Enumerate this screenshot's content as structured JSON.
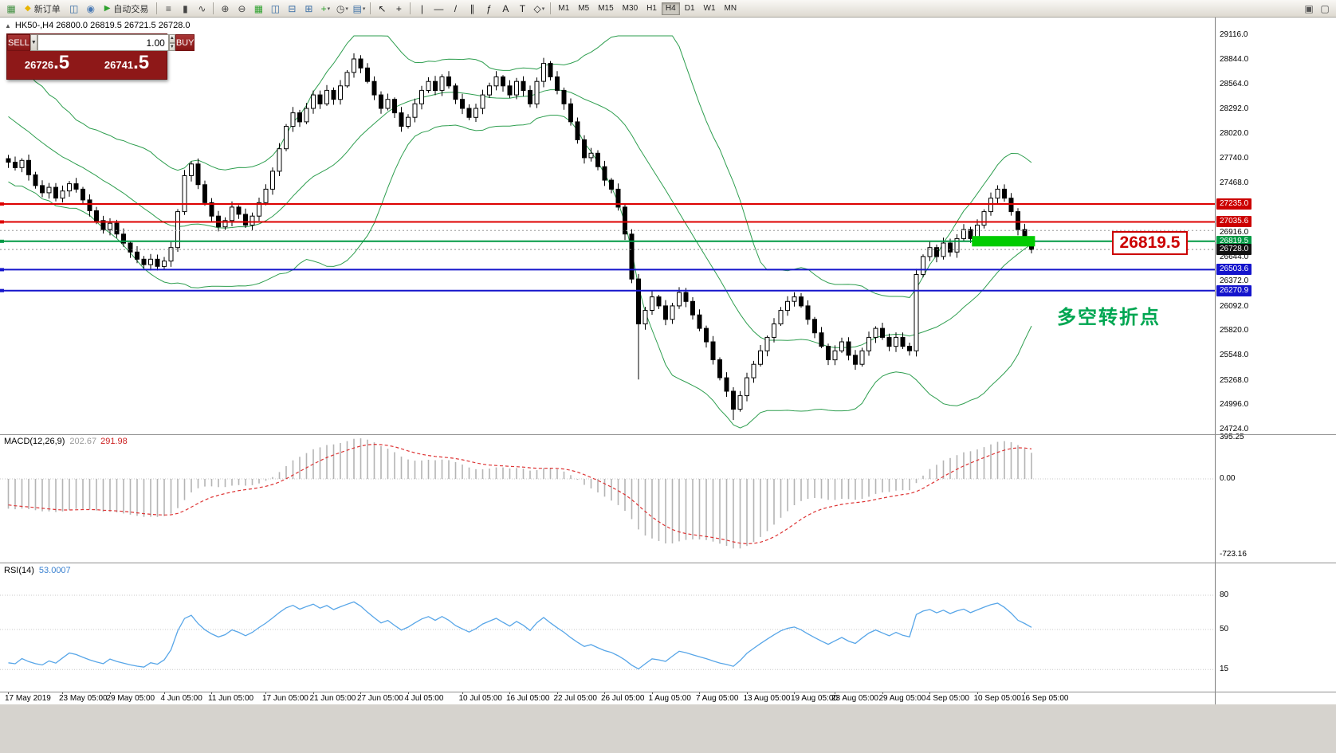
{
  "toolbar": {
    "left_items": [
      {
        "type": "icon",
        "name": "terminal-chart-icon",
        "glyph": "▦",
        "color": "#3f8f3f"
      },
      {
        "type": "button",
        "name": "new-order-button",
        "label": "新订单",
        "icon_glyph": "◆",
        "icon_color": "#e8b400"
      },
      {
        "type": "icon",
        "name": "charts-icon",
        "glyph": "◫",
        "color": "#3a6ea5"
      },
      {
        "type": "icon",
        "name": "mql-community-icon",
        "glyph": "◉",
        "color": "#4a7ab5"
      },
      {
        "type": "button",
        "name": "autotrading-button",
        "label": "自动交易",
        "icon_glyph": "▶",
        "icon_color": "#2da12d"
      },
      {
        "type": "sep"
      },
      {
        "type": "icon",
        "name": "bar-chart-mode-icon",
        "glyph": "≡",
        "color": "#444444"
      },
      {
        "type": "icon",
        "name": "candlestick-mode-icon",
        "glyph": "▮",
        "color": "#444444"
      },
      {
        "type": "icon",
        "name": "line-chart-mode-icon",
        "glyph": "∿",
        "color": "#444444"
      },
      {
        "type": "sep"
      },
      {
        "type": "icon",
        "name": "zoom-in-icon",
        "glyph": "⊕",
        "color": "#444444"
      },
      {
        "type": "icon",
        "name": "zoom-out-icon",
        "glyph": "⊖",
        "color": "#444444"
      },
      {
        "type": "icon",
        "name": "tile-windows-icon",
        "glyph": "▦",
        "color": "#2da12d"
      },
      {
        "type": "icon",
        "name": "cascade-windows-icon",
        "glyph": "◫",
        "color": "#3a6ea5"
      },
      {
        "type": "icon",
        "name": "tile-horizontal-icon",
        "glyph": "⊟",
        "color": "#3a6ea5"
      },
      {
        "type": "icon",
        "name": "tile-vertical-icon",
        "glyph": "⊞",
        "color": "#3a6ea5"
      },
      {
        "type": "icon-dd",
        "name": "indicators-icon",
        "glyph": "+",
        "color": "#2da12d"
      },
      {
        "type": "icon-dd",
        "name": "periods-clock-icon",
        "glyph": "◷",
        "color": "#444444"
      },
      {
        "type": "icon-dd",
        "name": "templates-icon",
        "glyph": "▤",
        "color": "#3a6ea5"
      },
      {
        "type": "sep"
      },
      {
        "type": "icon",
        "name": "cursor-arrow-icon",
        "glyph": "↖",
        "color": "#222222"
      },
      {
        "type": "icon",
        "name": "crosshair-icon",
        "glyph": "+",
        "color": "#222222"
      },
      {
        "type": "sep"
      },
      {
        "type": "icon",
        "name": "vertical-line-tool-icon",
        "glyph": "|",
        "color": "#222222"
      },
      {
        "type": "icon",
        "name": "horizontal-line-tool-icon",
        "glyph": "—",
        "color": "#222222"
      },
      {
        "type": "icon",
        "name": "trendline-tool-icon",
        "glyph": "/",
        "color": "#222222"
      },
      {
        "type": "icon",
        "name": "channel-tool-icon",
        "glyph": "∥",
        "color": "#222222"
      },
      {
        "type": "icon",
        "name": "fibonacci-tool-icon",
        "glyph": "ƒ",
        "color": "#222222"
      },
      {
        "type": "icon",
        "name": "text-tool-icon",
        "glyph": "A",
        "color": "#222222"
      },
      {
        "type": "icon",
        "name": "label-tool-icon",
        "glyph": "T",
        "color": "#222222"
      },
      {
        "type": "icon-dd",
        "name": "shapes-tool-icon",
        "glyph": "◇",
        "color": "#222222"
      },
      {
        "type": "sep"
      }
    ],
    "timeframes": [
      "M1",
      "M5",
      "M15",
      "M30",
      "H1",
      "H4",
      "D1",
      "W1",
      "MN"
    ],
    "active_timeframe": "H4",
    "right_items": [
      {
        "type": "icon",
        "name": "docking-panel-icon",
        "glyph": "▣",
        "color": "#555555"
      },
      {
        "type": "icon",
        "name": "chart-list-icon",
        "glyph": "▢",
        "color": "#555555"
      }
    ]
  },
  "chart": {
    "symbol_info": "HK50-,H4  26800.0 26819.5 26721.5 26728.0",
    "collapse_glyph": "▲",
    "trade": {
      "sell_label": "SELL",
      "buy_label": "BUY",
      "volume": "1.00",
      "sell_price_main": "26726",
      "sell_price_big": ".5",
      "buy_price_main": "26741",
      "buy_price_big": ".5"
    },
    "big_label": "26819.5",
    "big_label_color": "#cc0000",
    "annotation": "多空转折点",
    "annotation_color": "#00a651",
    "price_ticks": [
      "29116.0",
      "28844.0",
      "28564.0",
      "28292.0",
      "28020.0",
      "27740.0",
      "27468.0",
      "27196.0",
      "26916.0",
      "26644.0",
      "26372.0",
      "26092.0",
      "25820.0",
      "25548.0",
      "25268.0",
      "24996.0",
      "24724.0"
    ],
    "levels": [
      {
        "value": 27235.0,
        "color": "#dd0000",
        "width": 2,
        "style": "solid",
        "tag": "27235.0",
        "tag_bg": "#cc0000",
        "marker": true
      },
      {
        "value": 27035.6,
        "color": "#dd0000",
        "width": 2,
        "style": "solid",
        "tag": "27035.6",
        "tag_bg": "#cc0000",
        "marker": true
      },
      {
        "value": 26940.0,
        "color": "#9a9a9a",
        "width": 1,
        "style": "dotted",
        "tag": null,
        "tag_bg": null,
        "marker": false
      },
      {
        "value": 26819.5,
        "color": "#009944",
        "width": 2,
        "style": "solid",
        "tag": "26819.5",
        "tag_bg": "#009944",
        "marker": true
      },
      {
        "value": 26728.0,
        "color": "#8a8a8a",
        "width": 1,
        "style": "dotted",
        "tag": "26728.0",
        "tag_bg": "#111111",
        "marker": false
      },
      {
        "value": 26503.6,
        "color": "#1414cc",
        "width": 2,
        "style": "solid",
        "tag": "26503.6",
        "tag_bg": "#1414cc",
        "marker": true
      },
      {
        "value": 26270.9,
        "color": "#1414cc",
        "width": 2,
        "style": "solid",
        "tag": "26270.9",
        "tag_bg": "#1414cc",
        "marker": true
      }
    ],
    "highlight_rect": {
      "from_index": 142.5,
      "to_index": 151.8,
      "price_top": 26878,
      "price_bottom": 26762,
      "color": "#00cc00"
    },
    "time_labels": [
      {
        "i": 0,
        "t": "17 May 2019"
      },
      {
        "i": 8,
        "t": "23 May 05:00"
      },
      {
        "i": 15,
        "t": "29 May 05:00"
      },
      {
        "i": 23,
        "t": "4 Jun 05:00"
      },
      {
        "i": 30,
        "t": "11 Jun 05:00"
      },
      {
        "i": 38,
        "t": "17 Jun 05:00"
      },
      {
        "i": 45,
        "t": "21 Jun 05:00"
      },
      {
        "i": 52,
        "t": "27 Jun 05:00"
      },
      {
        "i": 59,
        "t": "4 Jul 05:00"
      },
      {
        "i": 67,
        "t": "10 Jul 05:00"
      },
      {
        "i": 74,
        "t": "16 Jul 05:00"
      },
      {
        "i": 81,
        "t": "22 Jul 05:00"
      },
      {
        "i": 88,
        "t": "26 Jul 05:00"
      },
      {
        "i": 95,
        "t": "1 Aug 05:00"
      },
      {
        "i": 102,
        "t": "7 Aug 05:00"
      },
      {
        "i": 109,
        "t": "13 Aug 05:00"
      },
      {
        "i": 116,
        "t": "19 Aug 05:00"
      },
      {
        "i": 122,
        "t": "23 Aug 05:00"
      },
      {
        "i": 129,
        "t": "29 Aug 05:00"
      },
      {
        "i": 136,
        "t": "4 Sep 05:00"
      },
      {
        "i": 143,
        "t": "10 Sep 05:00"
      },
      {
        "i": 150,
        "t": "16 Sep 05:00"
      }
    ]
  },
  "macd_label": {
    "name": "MACD(12,26,9)",
    "main": "202.67",
    "signal": "291.98"
  },
  "rsi_label": {
    "name": "RSI(14)",
    "value": "53.0007"
  },
  "scales": {
    "macd": [
      "395.25",
      "0.00",
      "-723.16"
    ],
    "rsi": [
      "80",
      "50",
      "15"
    ]
  },
  "chart_data": {
    "type": "candlestick",
    "symbol": "HK50",
    "period": "H4",
    "title": "HK50-,H4",
    "ohlc_current": {
      "open": 26800.0,
      "high": 26819.5,
      "low": 26721.5,
      "close": 26728.0
    },
    "y_range": [
      24724.0,
      29116.0
    ],
    "closes_pre": [
      28950,
      28800,
      28850,
      28650,
      28700,
      28500,
      28550,
      28350,
      28400,
      28200,
      28250,
      28050,
      28100,
      27950,
      28000,
      27850,
      27900,
      27780,
      27830,
      27740
    ],
    "closes": [
      27700,
      27640,
      27720,
      27560,
      27440,
      27360,
      27420,
      27300,
      27380,
      27460,
      27400,
      27280,
      27160,
      27050,
      26950,
      27020,
      26900,
      26800,
      26700,
      26620,
      26560,
      26620,
      26540,
      26600,
      26750,
      27150,
      27550,
      27680,
      27450,
      27250,
      27100,
      26980,
      27050,
      27200,
      27120,
      27000,
      27100,
      27250,
      27400,
      27600,
      27850,
      28100,
      28250,
      28150,
      28300,
      28450,
      28350,
      28500,
      28400,
      28550,
      28700,
      28850,
      28750,
      28600,
      28450,
      28300,
      28400,
      28250,
      28100,
      28200,
      28350,
      28500,
      28600,
      28500,
      28650,
      28550,
      28400,
      28300,
      28200,
      28300,
      28450,
      28550,
      28650,
      28550,
      28450,
      28600,
      28500,
      28350,
      28600,
      28800,
      28650,
      28500,
      28350,
      28150,
      27950,
      27750,
      27800,
      27650,
      27500,
      27400,
      27200,
      26900,
      26400,
      25900,
      26050,
      26200,
      26100,
      25950,
      26100,
      26250,
      26150,
      26000,
      25850,
      25700,
      25500,
      25300,
      25150,
      24950,
      25100,
      25300,
      25450,
      25600,
      25750,
      25900,
      26050,
      26150,
      26200,
      26100,
      25950,
      25800,
      25650,
      25500,
      25600,
      25700,
      25550,
      25450,
      25600,
      25750,
      25850,
      25750,
      25650,
      25750,
      25650,
      25600,
      26450,
      26650,
      26750,
      26650,
      26800,
      26700,
      26850,
      26950,
      26850,
      27000,
      27150,
      27300,
      27400,
      27300,
      27150,
      26950,
      26850,
      26728
    ],
    "wick_low_overrides": {
      "93": 25280,
      "107": 24830
    },
    "overlays": [
      {
        "type": "bollinger",
        "period": 20,
        "deviation": 2,
        "color": "#2e9e4f"
      }
    ],
    "indicators": [
      {
        "type": "macd",
        "fast": 12,
        "slow": 26,
        "signal": 9,
        "main_value": 202.67,
        "signal_value": 291.98,
        "scale": {
          "max": 395.25,
          "zero": 0.0,
          "min": -723.16
        },
        "histogram_color": "#b4b4b4",
        "signal_color": "#dd3333"
      },
      {
        "type": "rsi",
        "period": 14,
        "value": 53.0007,
        "levels": [
          80,
          50,
          15
        ],
        "line_color": "#58a6e8"
      }
    ]
  }
}
